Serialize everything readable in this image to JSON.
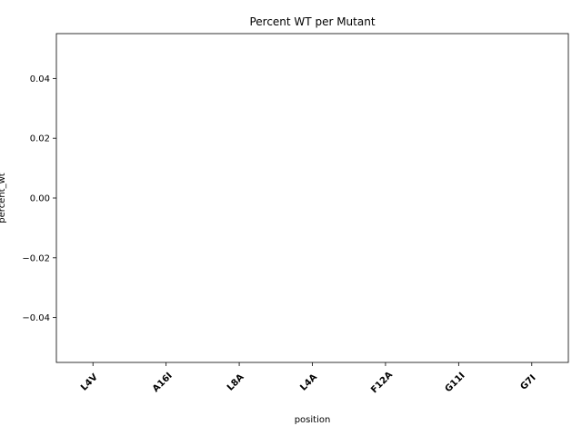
{
  "chart_data": {
    "type": "bar",
    "title": "Percent WT per Mutant",
    "x_label": "position",
    "y_label": "percent_wt",
    "categories": [
      "L4V",
      "A16I",
      "L8A",
      "L4A",
      "F12A",
      "G11I",
      "G7I"
    ],
    "values": [
      0,
      0,
      0,
      0,
      0,
      0,
      0
    ],
    "color": "#1f77b4",
    "ylim": [
      -0.055,
      0.055
    ],
    "yticks": [
      {
        "value": -0.04,
        "label": "−0.04"
      },
      {
        "value": -0.02,
        "label": "−0.02"
      },
      {
        "value": 0,
        "label": "0.00"
      },
      0.02,
      0.04
    ],
    "grid": false
  }
}
